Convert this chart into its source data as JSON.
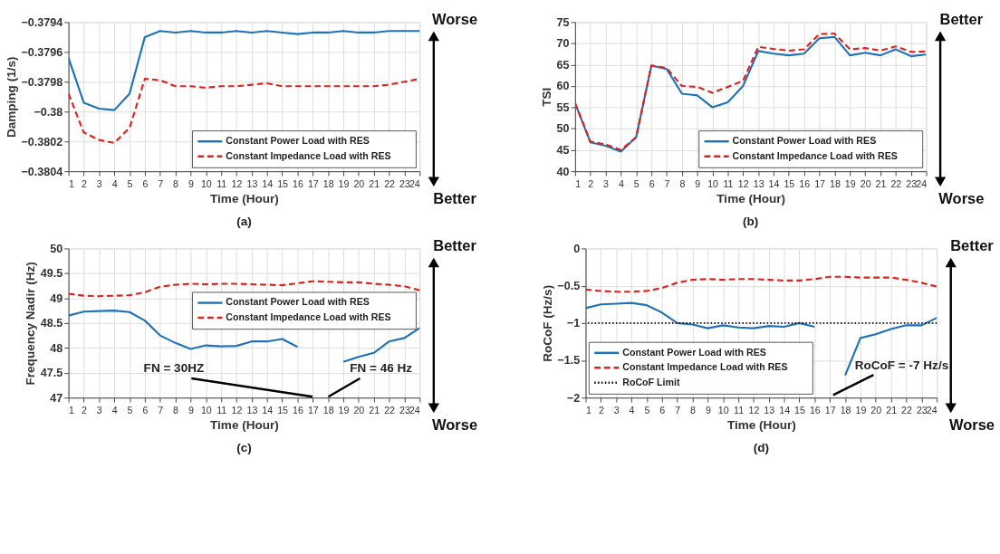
{
  "chart_data": [
    {
      "type": "line",
      "xlabel": "Time (Hour)",
      "ylabel": "Damping (1/s)",
      "x": [
        1,
        2,
        3,
        4,
        5,
        6,
        7,
        8,
        9,
        10,
        11,
        12,
        13,
        14,
        15,
        16,
        17,
        18,
        19,
        20,
        21,
        22,
        23,
        24
      ],
      "xlim": [
        1,
        24
      ],
      "xticks": [
        1,
        2,
        3,
        4,
        5,
        6,
        7,
        8,
        9,
        10,
        11,
        12,
        13,
        14,
        15,
        16,
        17,
        18,
        19,
        20,
        21,
        22,
        23,
        24
      ],
      "ylim": [
        -0.3804,
        -0.3794
      ],
      "yticks": [
        -0.3804,
        -0.3802,
        -0.38,
        -0.3798,
        -0.3796,
        -0.3794
      ],
      "grid": true,
      "legend": "bottom right",
      "series": [
        {
          "name": "Constant Power Load with RES",
          "color": "#1f72b8",
          "line_style": "solid",
          "values": [
            -0.37964,
            -0.37994,
            -0.37998,
            -0.37999,
            -0.37988,
            -0.3795,
            -0.37946,
            -0.37947,
            -0.37946,
            -0.37947,
            -0.37947,
            -0.37946,
            -0.37947,
            -0.37946,
            -0.37947,
            -0.37948,
            -0.37947,
            -0.37947,
            -0.37946,
            -0.37947,
            -0.37947,
            -0.37946,
            -0.37946,
            -0.37946
          ]
        },
        {
          "name": "Constant Impedance Load with RES",
          "color": "#e0201b",
          "line_style": "dashed",
          "values": [
            -0.37988,
            -0.38014,
            -0.38019,
            -0.38021,
            -0.38011,
            -0.37978,
            -0.37979,
            -0.37983,
            -0.37983,
            -0.37984,
            -0.37983,
            -0.37983,
            -0.37982,
            -0.37981,
            -0.37983,
            -0.37983,
            -0.37983,
            -0.37983,
            -0.37983,
            -0.37983,
            -0.37983,
            -0.37982,
            -0.3798,
            -0.37978
          ]
        }
      ],
      "annotations": [
        "Worse",
        "Better",
        "(a)"
      ]
    },
    {
      "type": "line",
      "xlabel": "Time (Hour)",
      "ylabel": "TSI",
      "x": [
        1,
        2,
        3,
        4,
        5,
        6,
        7,
        8,
        9,
        10,
        11,
        12,
        13,
        14,
        15,
        16,
        17,
        18,
        19,
        20,
        21,
        22,
        23,
        24
      ],
      "xlim": [
        1,
        24
      ],
      "xticks": [
        1,
        2,
        3,
        4,
        5,
        6,
        7,
        8,
        9,
        10,
        11,
        12,
        13,
        14,
        15,
        16,
        17,
        18,
        19,
        20,
        21,
        22,
        23,
        24
      ],
      "ylim": [
        40,
        75
      ],
      "yticks": [
        40,
        45,
        50,
        55,
        60,
        65,
        70,
        75
      ],
      "grid": true,
      "legend": "bottom right",
      "series": [
        {
          "name": "Constant Power Load with RES",
          "color": "#1f72b8",
          "line_style": "solid",
          "values": [
            56,
            46.8,
            46,
            44.6,
            48,
            64.8,
            64,
            58.2,
            57.8,
            55,
            56.2,
            60,
            68.2,
            67.6,
            67.2,
            67.6,
            71.2,
            71.5,
            67.2,
            67.8,
            67.2,
            68.6,
            67,
            67.4
          ]
        },
        {
          "name": "Constant Impedance Load with RES",
          "color": "#e0201b",
          "line_style": "dashed",
          "values": [
            56,
            47,
            46.3,
            45,
            48,
            64.8,
            64.2,
            60,
            59.8,
            58.4,
            59.8,
            61.2,
            69.2,
            68.7,
            68.3,
            68.6,
            72.2,
            72.3,
            68.6,
            68.9,
            68.3,
            69.3,
            68,
            68.1
          ]
        }
      ],
      "annotations": [
        "Better",
        "Worse",
        "(b)"
      ]
    },
    {
      "type": "line",
      "xlabel": "Time (Hour)",
      "ylabel": "Frequency Nadir (Hz)",
      "x": [
        1,
        2,
        3,
        4,
        5,
        6,
        7,
        8,
        9,
        10,
        11,
        12,
        13,
        14,
        15,
        16,
        17,
        18,
        19,
        20,
        21,
        22,
        23,
        24
      ],
      "xlim": [
        1,
        24
      ],
      "xticks": [
        1,
        2,
        3,
        4,
        5,
        6,
        7,
        8,
        9,
        10,
        11,
        12,
        13,
        14,
        15,
        16,
        17,
        18,
        19,
        20,
        21,
        22,
        23,
        24
      ],
      "ylim": [
        47,
        50
      ],
      "yticks": [
        47,
        47.5,
        48,
        48.5,
        49,
        49.5,
        50
      ],
      "grid": true,
      "legend": "top right",
      "series": [
        {
          "name": "Constant Power Load with RES",
          "color": "#1f72b8",
          "line_style": "solid",
          "values": [
            48.65,
            48.73,
            48.74,
            48.75,
            48.72,
            48.55,
            48.25,
            48.1,
            47.98,
            48.05,
            48.03,
            48.04,
            48.13,
            48.13,
            48.18,
            48.02,
            null,
            null,
            47.72,
            47.82,
            47.9,
            48.13,
            48.2,
            48.4
          ]
        },
        {
          "name": "Constant Impedance Load with RES",
          "color": "#e0201b",
          "line_style": "dashed",
          "values": [
            49.09,
            49.05,
            49.04,
            49.05,
            49.06,
            49.12,
            49.23,
            49.27,
            49.29,
            49.28,
            49.29,
            49.29,
            49.28,
            49.27,
            49.26,
            49.3,
            49.34,
            49.33,
            49.32,
            49.32,
            49.29,
            49.27,
            49.24,
            49.16
          ]
        }
      ],
      "annotations": [
        "Better",
        "Worse",
        "FN = 30HZ",
        "FN = 46 Hz",
        "(c)"
      ]
    },
    {
      "type": "line",
      "xlabel": "Time (Hour)",
      "ylabel": "RoCoF (Hz/s)",
      "x": [
        1,
        2,
        3,
        4,
        5,
        6,
        7,
        8,
        9,
        10,
        11,
        12,
        13,
        14,
        15,
        16,
        17,
        18,
        19,
        20,
        21,
        22,
        23,
        24
      ],
      "xlim": [
        1,
        24
      ],
      "xticks": [
        1,
        2,
        3,
        4,
        5,
        6,
        7,
        8,
        9,
        10,
        11,
        12,
        13,
        14,
        15,
        16,
        17,
        18,
        19,
        20,
        21,
        22,
        23,
        24
      ],
      "ylim": [
        -2,
        0
      ],
      "yticks": [
        -2,
        -1.5,
        -1,
        -0.5,
        0
      ],
      "grid": true,
      "legend": "bottom left",
      "series": [
        {
          "name": "Constant Power Load with RES",
          "color": "#1f72b8",
          "line_style": "solid",
          "values": [
            -0.8,
            -0.75,
            -0.74,
            -0.73,
            -0.76,
            -0.86,
            -1.0,
            -1.02,
            -1.07,
            -1.03,
            -1.06,
            -1.07,
            -1.04,
            -1.05,
            -1.0,
            -1.05,
            null,
            -1.7,
            -1.2,
            -1.15,
            -1.08,
            -1.03,
            -1.03,
            -0.93
          ]
        },
        {
          "name": "Constant Impedance Load with RES",
          "color": "#e0201b",
          "line_style": "dashed",
          "values": [
            -0.55,
            -0.57,
            -0.58,
            -0.58,
            -0.57,
            -0.53,
            -0.46,
            -0.42,
            -0.41,
            -0.42,
            -0.41,
            -0.41,
            -0.42,
            -0.43,
            -0.43,
            -0.41,
            -0.38,
            -0.38,
            -0.39,
            -0.39,
            -0.39,
            -0.42,
            -0.46,
            -0.51
          ]
        }
      ],
      "ref_lines": [
        {
          "axis": "y",
          "value": -1,
          "label": "RoCoF Limit",
          "color": "#000000",
          "line_style": "dotted"
        }
      ],
      "annotations": [
        "Better",
        "Worse",
        "RoCoF = -7 Hz/s",
        "(d)"
      ]
    }
  ]
}
